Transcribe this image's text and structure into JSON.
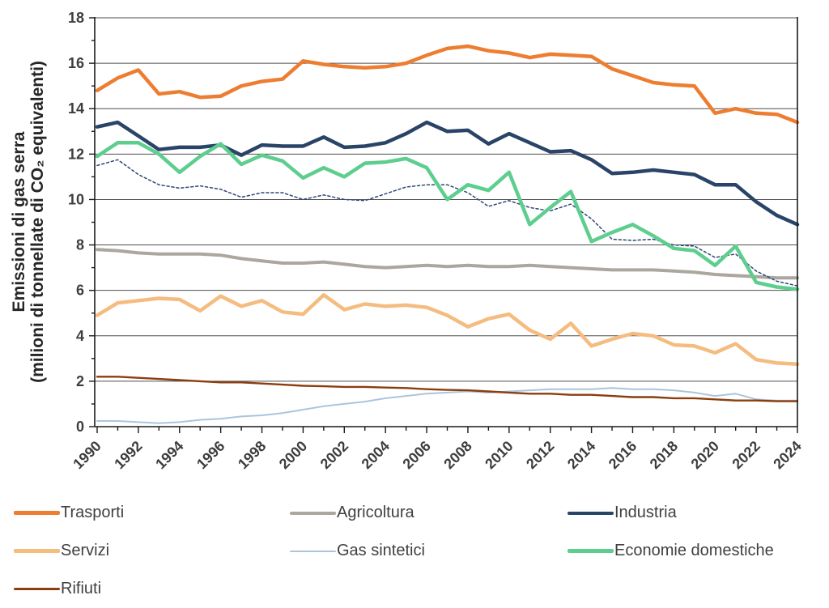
{
  "chart_data": {
    "type": "line",
    "title": "",
    "ylabel_line1": "Emissioni di gas serra",
    "ylabel_line2": "(milioni di tonnellate di CO₂ equivalenti)",
    "ylim": [
      0,
      18
    ],
    "ytick_step": 2,
    "yticks": [
      0,
      2,
      4,
      6,
      8,
      10,
      12,
      14,
      16,
      18
    ],
    "grid": "horizontal-major",
    "legend_position": "bottom",
    "years": [
      1990,
      1991,
      1992,
      1993,
      1994,
      1995,
      1996,
      1997,
      1998,
      1999,
      2000,
      2001,
      2002,
      2003,
      2004,
      2005,
      2006,
      2007,
      2008,
      2009,
      2010,
      2011,
      2012,
      2013,
      2014,
      2015,
      2016,
      2017,
      2018,
      2019,
      2020,
      2021,
      2022,
      2023,
      2024
    ],
    "x_tick_labels": [
      "1990",
      "1992",
      "1994",
      "1996",
      "1998",
      "2000",
      "2002",
      "2004",
      "2006",
      "2008",
      "2010",
      "2012",
      "2014",
      "2016",
      "2018",
      "2020",
      "2022",
      "2024"
    ],
    "series": [
      {
        "id": "gas-sintetici",
        "label": "Gas sintetici",
        "in_legend": true,
        "color": "#AAC5DD",
        "width": 2,
        "dash": null,
        "values": [
          0.25,
          0.25,
          0.2,
          0.15,
          0.2,
          0.3,
          0.35,
          0.45,
          0.5,
          0.6,
          0.75,
          0.9,
          1.0,
          1.1,
          1.25,
          1.35,
          1.45,
          1.5,
          1.55,
          1.5,
          1.55,
          1.6,
          1.65,
          1.65,
          1.65,
          1.7,
          1.65,
          1.65,
          1.6,
          1.5,
          1.35,
          1.45,
          1.2,
          1.15,
          1.15
        ]
      },
      {
        "id": "rifiuti",
        "label": "Rifiuti",
        "in_legend": true,
        "color": "#8C3D0E",
        "width": 2.4,
        "dash": null,
        "values": [
          2.2,
          2.2,
          2.15,
          2.1,
          2.05,
          2.0,
          1.95,
          1.95,
          1.9,
          1.85,
          1.8,
          1.78,
          1.75,
          1.75,
          1.72,
          1.7,
          1.65,
          1.62,
          1.6,
          1.55,
          1.5,
          1.45,
          1.45,
          1.4,
          1.4,
          1.35,
          1.3,
          1.3,
          1.25,
          1.25,
          1.2,
          1.15,
          1.15,
          1.12,
          1.12
        ]
      },
      {
        "id": "agricoltura",
        "label": "Agricoltura",
        "in_legend": true,
        "color": "#ABA69F",
        "width": 4,
        "dash": null,
        "values": [
          7.8,
          7.75,
          7.65,
          7.6,
          7.6,
          7.6,
          7.55,
          7.4,
          7.3,
          7.2,
          7.2,
          7.25,
          7.15,
          7.05,
          7.0,
          7.05,
          7.1,
          7.05,
          7.1,
          7.05,
          7.05,
          7.1,
          7.05,
          7.0,
          6.95,
          6.9,
          6.9,
          6.9,
          6.85,
          6.8,
          6.7,
          6.65,
          6.6,
          6.55,
          6.55
        ]
      },
      {
        "id": "linea-tratteggiata",
        "label": null,
        "in_legend": false,
        "color": "#2F4677",
        "width": 1.5,
        "dash": "3 3",
        "values": [
          11.5,
          11.75,
          11.1,
          10.65,
          10.5,
          10.6,
          10.45,
          10.1,
          10.3,
          10.3,
          10.0,
          10.2,
          10.0,
          9.95,
          10.25,
          10.55,
          10.65,
          10.65,
          10.3,
          9.7,
          9.95,
          9.65,
          9.5,
          9.8,
          9.15,
          8.25,
          8.2,
          8.25,
          8.0,
          7.95,
          7.45,
          7.6,
          6.85,
          6.4,
          6.2
        ]
      },
      {
        "id": "servizi",
        "label": "Servizi",
        "in_legend": true,
        "color": "#F5BC80",
        "width": 4.5,
        "dash": null,
        "values": [
          4.9,
          5.45,
          5.55,
          5.65,
          5.6,
          5.1,
          5.75,
          5.3,
          5.55,
          5.05,
          4.95,
          5.8,
          5.15,
          5.4,
          5.3,
          5.35,
          5.25,
          4.9,
          4.4,
          4.75,
          4.95,
          4.25,
          3.85,
          4.55,
          3.55,
          3.85,
          4.1,
          4.0,
          3.6,
          3.55,
          3.25,
          3.65,
          2.95,
          2.8,
          2.75
        ]
      },
      {
        "id": "industria",
        "label": "Industria",
        "in_legend": true,
        "color": "#2A4468",
        "width": 4.5,
        "dash": null,
        "values": [
          13.2,
          13.4,
          12.8,
          12.2,
          12.3,
          12.3,
          12.4,
          11.95,
          12.4,
          12.35,
          12.35,
          12.75,
          12.3,
          12.35,
          12.5,
          12.9,
          13.4,
          13.0,
          13.05,
          12.45,
          12.9,
          12.5,
          12.1,
          12.15,
          11.75,
          11.15,
          11.2,
          11.3,
          11.2,
          11.1,
          10.65,
          10.65,
          9.9,
          9.3,
          8.9
        ]
      },
      {
        "id": "economie-domestiche",
        "label": "Economie domestiche",
        "in_legend": true,
        "color": "#5DCE8E",
        "width": 4.5,
        "dash": null,
        "values": [
          11.9,
          12.5,
          12.5,
          12.0,
          11.2,
          11.9,
          12.45,
          11.55,
          11.95,
          11.7,
          10.95,
          11.4,
          11.0,
          11.6,
          11.65,
          11.8,
          11.4,
          10.0,
          10.65,
          10.4,
          11.2,
          8.9,
          9.65,
          10.35,
          8.15,
          8.55,
          8.9,
          8.4,
          7.85,
          7.75,
          7.1,
          7.95,
          6.35,
          6.15,
          6.05
        ]
      },
      {
        "id": "trasporti",
        "label": "Trasporti",
        "in_legend": true,
        "color": "#ED7D31",
        "width": 4.5,
        "dash": null,
        "values": [
          14.8,
          15.35,
          15.7,
          14.65,
          14.75,
          14.5,
          14.55,
          15.0,
          15.2,
          15.3,
          16.1,
          15.95,
          15.85,
          15.8,
          15.85,
          16.0,
          16.35,
          16.65,
          16.75,
          16.55,
          16.45,
          16.25,
          16.4,
          16.35,
          16.3,
          15.75,
          15.45,
          15.15,
          15.05,
          15.0,
          13.8,
          14.0,
          13.8,
          13.75,
          13.4
        ]
      }
    ]
  },
  "legend": {
    "items": [
      {
        "id": "trasporti",
        "label": "Trasporti",
        "color": "#ED7D31",
        "thickness": 5,
        "row": 1,
        "col": 1
      },
      {
        "id": "agricoltura",
        "label": "Agricoltura",
        "color": "#ABA69F",
        "thickness": 4,
        "row": 1,
        "col": 2
      },
      {
        "id": "industria",
        "label": "Industria",
        "color": "#2A4468",
        "thickness": 4,
        "row": 1,
        "col": 3
      },
      {
        "id": "servizi",
        "label": "Servizi",
        "color": "#F5BC80",
        "thickness": 5,
        "row": 2,
        "col": 1
      },
      {
        "id": "gas-sintetici",
        "label": "Gas sintetici",
        "color": "#AAC5DD",
        "thickness": 2,
        "row": 2,
        "col": 2
      },
      {
        "id": "economie-domestiche",
        "label": "Economie domestiche",
        "color": "#5DCE8E",
        "thickness": 5,
        "row": 2,
        "col": 3
      },
      {
        "id": "rifiuti",
        "label": "Rifiuti",
        "color": "#8C3D0E",
        "thickness": 3,
        "row": 3,
        "col": 1
      }
    ]
  }
}
